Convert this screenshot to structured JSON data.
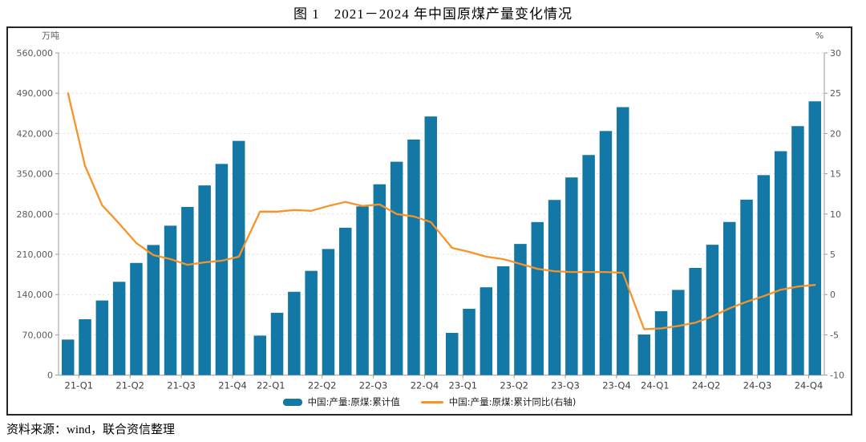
{
  "title": "图 1　2021－2024 年中国原煤产量变化情况",
  "source": "资料来源：wind，联合资信整理",
  "chart_data": {
    "type": "bar",
    "title": "图 1　2021－2024 年中国原煤产量变化情况",
    "left_axis": {
      "unit": "万吨",
      "min": 0,
      "max": 560000,
      "step": 70000,
      "tick_labels": [
        "0",
        "70,000",
        "140,000",
        "210,000",
        "280,000",
        "350,000",
        "420,000",
        "490,000",
        "560,000"
      ]
    },
    "right_axis": {
      "unit": "%",
      "min": -10,
      "max": 30,
      "step": 5,
      "tick_labels": [
        "-10",
        "-5",
        "0",
        "5",
        "10",
        "15",
        "20",
        "25",
        "30"
      ]
    },
    "x_tick_labels": [
      "21-Q1",
      "21-Q2",
      "21-Q3",
      "21-Q4",
      "22-Q1",
      "22-Q2",
      "22-Q3",
      "22-Q4",
      "23-Q1",
      "23-Q2",
      "23-Q3",
      "23-Q4",
      "24-Q1",
      "24-Q2",
      "24-Q3",
      "24-Q4"
    ],
    "grid": "horizontal-dashed",
    "legend_position": "bottom-center",
    "years": [
      "2021",
      "2022",
      "2023",
      "2024"
    ],
    "series": [
      {
        "name": "中国:产量:原煤:累计值",
        "type": "bar",
        "axis": "left",
        "color": "#1478A6",
        "values_by_year": [
          [
            61760,
            97056,
            129666,
            162193,
            194976,
            226169,
            259724,
            292332,
            329730,
            367100,
            407136
          ],
          [
            68660,
            108340,
            144800,
            181200,
            219200,
            256200,
            293300,
            331700,
            370900,
            409400,
            449600
          ],
          [
            73420,
            115330,
            152650,
            189200,
            228000,
            266000,
            304500,
            343600,
            382600,
            424300,
            465800
          ],
          [
            70520,
            111100,
            148100,
            186300,
            226600,
            266200,
            305000,
            347600,
            389200,
            432800,
            475900
          ]
        ]
      },
      {
        "name": "中国:产量:原煤:累计同比(右轴)",
        "type": "line",
        "axis": "right",
        "color": "#F79329",
        "values_by_year": [
          [
            25.0,
            16.0,
            11.1,
            8.8,
            6.4,
            4.9,
            4.4,
            3.7,
            4.0,
            4.2,
            4.7
          ],
          [
            10.3,
            10.3,
            10.5,
            10.4,
            11.0,
            11.5,
            11.0,
            11.2,
            10.0,
            9.7,
            9.0
          ],
          [
            5.8,
            5.3,
            4.7,
            4.4,
            3.8,
            3.2,
            2.9,
            2.8,
            2.8,
            2.8,
            2.7
          ],
          [
            -4.3,
            -4.2,
            -3.9,
            -3.5,
            -2.7,
            -1.7,
            -0.9,
            -0.2,
            0.6,
            1.0,
            1.2
          ]
        ]
      }
    ],
    "colors": {
      "bar": "#1478A6",
      "line": "#F79329",
      "grid": "#e2e2e2",
      "axis": "#ababab",
      "tick_text": "#595959",
      "x_label_text": "#404040",
      "border": "#262626"
    }
  },
  "legend": {
    "bar_label": "中国:产量:原煤:累计值",
    "line_label": "中国:产量:原煤:累计同比(右轴)"
  }
}
